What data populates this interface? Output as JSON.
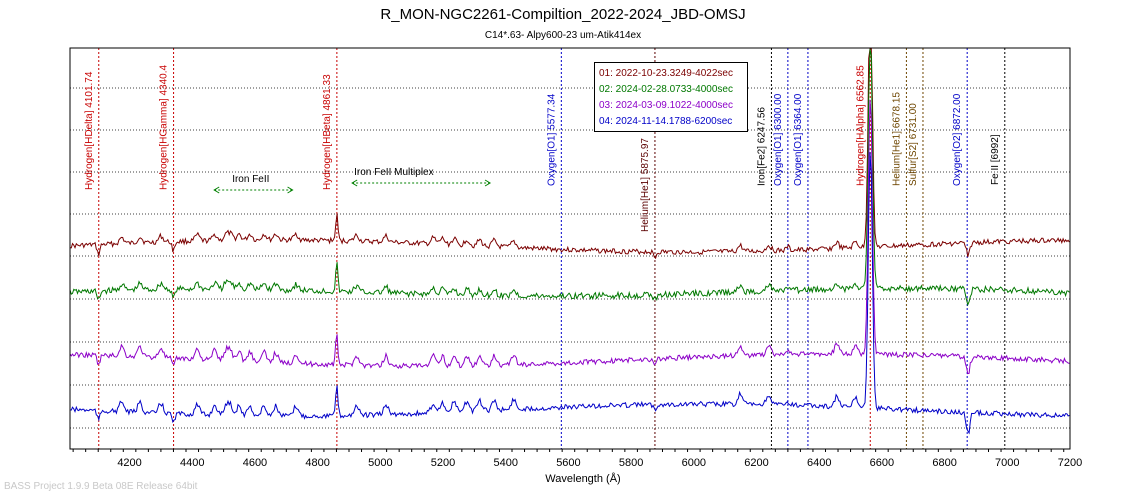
{
  "chart_data": {
    "type": "line",
    "title": "R_MON-NGC2261-Compiltion_2022-2024_JBD-OMSJ",
    "subtitle": "C14*.63- Alpy600-23 um-Atik414ex",
    "xlabel": "Wavelength (Å)",
    "ylabel": "",
    "xlim": [
      4010,
      7200
    ],
    "x_ticks": [
      4200,
      4400,
      4600,
      4800,
      5000,
      5200,
      5400,
      5600,
      5800,
      6000,
      6200,
      6400,
      6600,
      6800,
      7000,
      7200
    ],
    "grid": "horizontal dotted",
    "legend_position": "top-center",
    "series": [
      {
        "name": "01: 2022-10-23.3249-4022sec",
        "color": "#7b0000"
      },
      {
        "name": "02: 2024-02-28.0733-4000sec",
        "color": "#007800"
      },
      {
        "name": "03: 2024-03-09.1022-4000sec",
        "color": "#8c00c8"
      },
      {
        "name": "04: 2024-11-14.1788-6200sec",
        "color": "#0000c8"
      }
    ],
    "line_markers": [
      {
        "wavelength": 4101.74,
        "label": "Hydrogen[HDelta] 4101.74",
        "color": "#c80000"
      },
      {
        "wavelength": 4340.4,
        "label": "Hydrogen[HGamma] 4340.4",
        "color": "#c80000"
      },
      {
        "wavelength": 4861.33,
        "label": "Hydrogen[HBeta] 4861.33",
        "color": "#c80000"
      },
      {
        "wavelength": 5577.34,
        "label": "Oxygen[O1] 5577.34",
        "color": "#0000c8"
      },
      {
        "wavelength": 5875.97,
        "label": "Helium[He1] 5875.97",
        "color": "#5a0000"
      },
      {
        "wavelength": 6247.56,
        "label": "Iron[Fe2] 6247.56",
        "color": "#000000"
      },
      {
        "wavelength": 6300.0,
        "label": "Oxygen[O1] 6300.00",
        "color": "#0000c8"
      },
      {
        "wavelength": 6364.0,
        "label": "Oxygen[O1] 6364.00",
        "color": "#0000c8"
      },
      {
        "wavelength": 6562.85,
        "label": "Hydrogen[HAlpha] 6562.85",
        "color": "#c80000"
      },
      {
        "wavelength": 6678.15,
        "label": "Helium[He1] 6678.15",
        "color": "#6e4600"
      },
      {
        "wavelength": 6731.0,
        "label": "Sulfur[S2] 6731.00",
        "color": "#6e4600"
      },
      {
        "wavelength": 6872.0,
        "label": "Oxygen[O2] 6872.00",
        "color": "#0000c8"
      },
      {
        "wavelength": 6992,
        "label": "Fe II [6992]",
        "color": "#000000"
      }
    ],
    "range_annotations": [
      {
        "label": "Iron FeII",
        "start": 4470,
        "end": 4720
      },
      {
        "label": "Iron FeII Multiplex",
        "start": 4910,
        "end": 5350
      }
    ]
  },
  "footer": {
    "watermark": "BASS Project 1.9.9 Beta 08E Release 64bit"
  }
}
